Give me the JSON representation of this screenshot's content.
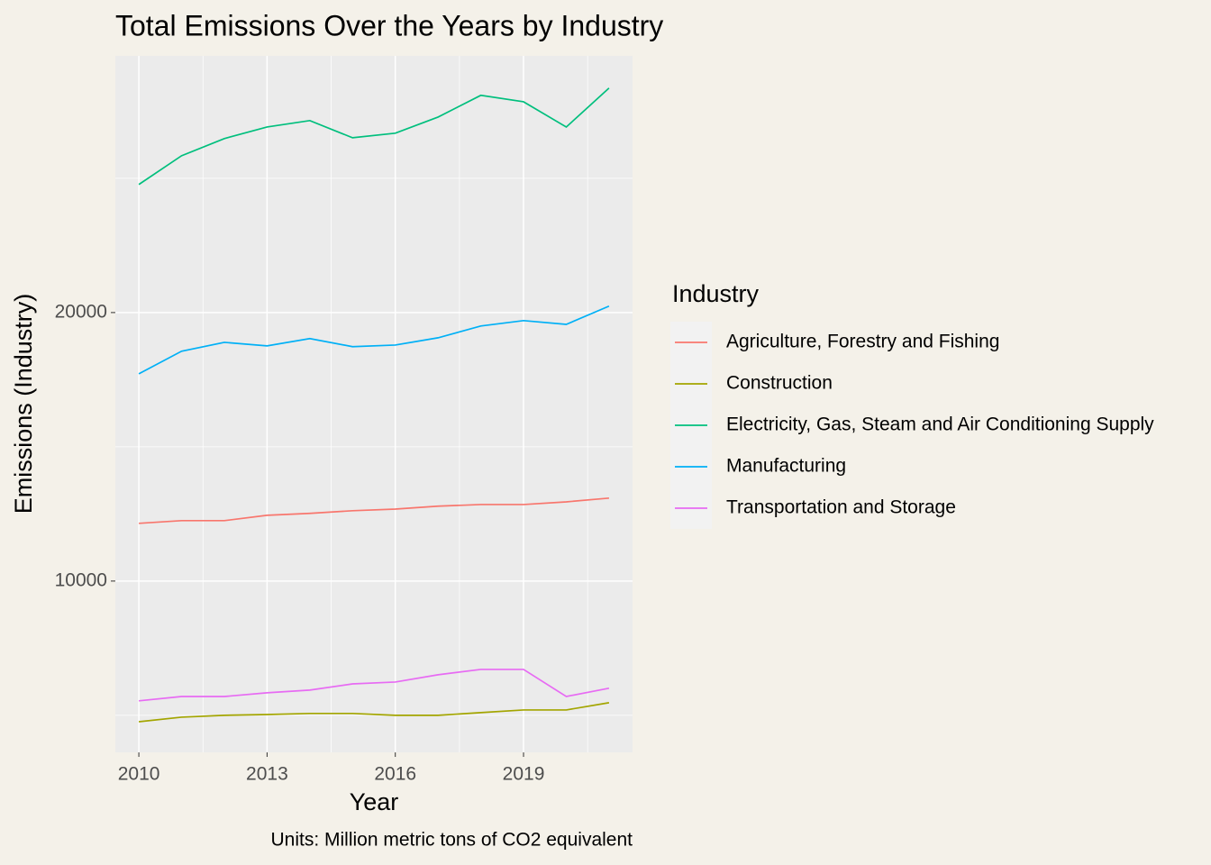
{
  "chart_data": {
    "type": "line",
    "title": "Total Emissions Over the Years by Industry",
    "x_label": "Year",
    "y_label": "Emissions (Industry)",
    "caption": "Units: Million metric tons of CO2 equivalent",
    "legend_title": "Industry",
    "legend_position": "right",
    "x": [
      2010,
      2011,
      2012,
      2013,
      2014,
      2015,
      2016,
      2017,
      2018,
      2019,
      2020,
      2021
    ],
    "xlim": [
      2009.45,
      2021.55
    ],
    "xticks": [
      2010,
      2013,
      2016,
      2019
    ],
    "x_minor_ticks": [
      2011.5,
      2014.5,
      2017.5,
      2020.5
    ],
    "ylim": [
      3620,
      29560
    ],
    "yticks": [
      10000,
      20000
    ],
    "y_minor_ticks": [
      5000,
      15000,
      25000
    ],
    "grid": true,
    "series": [
      {
        "name": "Agriculture, Forestry and Fishing",
        "color": "#F8766D",
        "values": [
          12150,
          12250,
          12250,
          12450,
          12520,
          12620,
          12680,
          12790,
          12850,
          12850,
          12950,
          13090
        ]
      },
      {
        "name": "Construction",
        "color": "#A3A500",
        "values": [
          4760,
          4930,
          5000,
          5030,
          5070,
          5070,
          5000,
          5000,
          5100,
          5200,
          5200,
          5470
        ]
      },
      {
        "name": "Electricity, Gas, Steam and Air Conditioning Supply",
        "color": "#00BF7D",
        "values": [
          24770,
          25840,
          26480,
          26910,
          27150,
          26510,
          26680,
          27280,
          28090,
          27850,
          26910,
          28360
        ]
      },
      {
        "name": "Manufacturing",
        "color": "#00B0F6",
        "values": [
          17720,
          18560,
          18890,
          18760,
          19030,
          18730,
          18790,
          19060,
          19500,
          19700,
          19560,
          20240
        ]
      },
      {
        "name": "Transportation and Storage",
        "color": "#E76BF3",
        "values": [
          5540,
          5700,
          5700,
          5840,
          5940,
          6170,
          6240,
          6510,
          6710,
          6710,
          5700,
          6010
        ]
      }
    ]
  }
}
